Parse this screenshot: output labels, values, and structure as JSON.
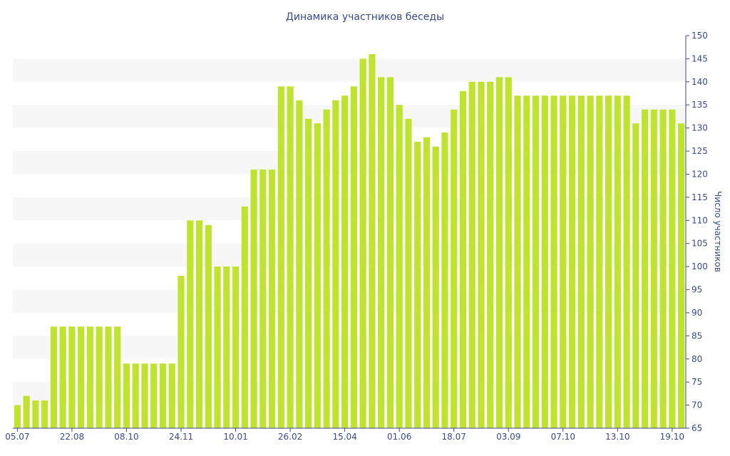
{
  "chart_data": {
    "type": "bar",
    "title": "Динамика участников беседы",
    "xlabel": "",
    "ylabel": "Число участников",
    "ylim": [
      65,
      150
    ],
    "y_ticks": [
      65,
      70,
      75,
      80,
      85,
      90,
      95,
      100,
      105,
      110,
      115,
      120,
      125,
      130,
      135,
      140,
      145,
      150
    ],
    "y_axis_position": "right",
    "grid": "alternating horizontal bands",
    "x_tick_labels": [
      "05.07",
      "22.08",
      "08.10",
      "24.11",
      "10.01",
      "26.02",
      "15.04",
      "01.06",
      "18.07",
      "03.09",
      "07.10",
      "13.10",
      "19.10"
    ],
    "x_tick_indices": [
      0,
      6,
      12,
      18,
      24,
      30,
      36,
      42,
      48,
      54,
      60,
      66,
      72
    ],
    "values": [
      70,
      72,
      71,
      71,
      87,
      87,
      87,
      87,
      87,
      87,
      87,
      87,
      79,
      79,
      79,
      79,
      79,
      79,
      98,
      110,
      110,
      109,
      100,
      100,
      100,
      113,
      121,
      121,
      121,
      139,
      139,
      136,
      132,
      131,
      134,
      136,
      137,
      139,
      145,
      146,
      141,
      141,
      135,
      132,
      127,
      128,
      126,
      129,
      134,
      138,
      140,
      140,
      140,
      141,
      141,
      137,
      137,
      137,
      137,
      137,
      137,
      137,
      137,
      137,
      137,
      137,
      137,
      137,
      131,
      134,
      134,
      134,
      134,
      131
    ],
    "colors": {
      "bar": "#bfe32f",
      "band": "#f7f7f7",
      "text": "#3a4a8a",
      "axis": "#3a4a8a"
    }
  }
}
